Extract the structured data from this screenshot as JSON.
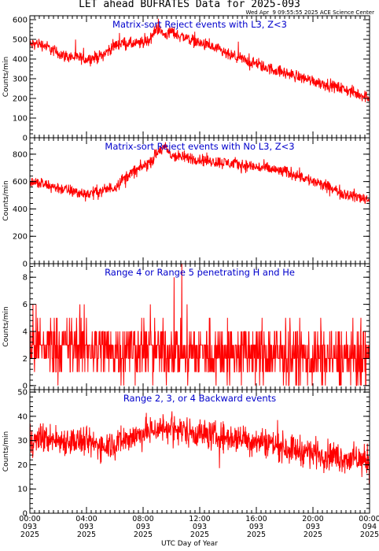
{
  "header": {
    "title": "LET ahead BUFRATES Data for 2025-093",
    "timestamp": "Wed Apr  9 09:55:55 2025 ACE Science Center"
  },
  "footer": {
    "xlabel": "UTC Day of Year"
  },
  "style": {
    "trace_color": "#ff0000",
    "title_color": "#0000cc",
    "axis_color": "#000000"
  },
  "chart_data": [
    {
      "type": "line",
      "title": "Matrix-sort Reject events with L3, Z<3",
      "ylabel": "Counts/min",
      "ylim": [
        0,
        620
      ],
      "yticks": [
        0,
        100,
        200,
        300,
        400,
        500,
        600
      ],
      "xlim": [
        0,
        24
      ],
      "grid": false,
      "series": [
        {
          "x": [
            0,
            0.5,
            1,
            1.5,
            2,
            2.5,
            3,
            3.5,
            4,
            4.5,
            5,
            5.5,
            6,
            6.5,
            7,
            7.5,
            8,
            8.5,
            9,
            9.5,
            10,
            10.5,
            11,
            11.5,
            12,
            12.5,
            13,
            13.5,
            14,
            14.5,
            15,
            15.5,
            16,
            16.5,
            17,
            17.5,
            18,
            18.5,
            19,
            19.5,
            20,
            20.5,
            21,
            21.5,
            22,
            22.5,
            23,
            23.5,
            24
          ],
          "values": [
            470,
            480,
            470,
            450,
            430,
            415,
            410,
            405,
            400,
            405,
            415,
            440,
            470,
            480,
            480,
            475,
            485,
            500,
            560,
            520,
            540,
            520,
            510,
            495,
            480,
            470,
            455,
            440,
            420,
            410,
            400,
            385,
            375,
            360,
            350,
            340,
            330,
            320,
            310,
            300,
            290,
            280,
            270,
            260,
            250,
            240,
            225,
            215,
            205
          ],
          "noise": 30
        }
      ]
    },
    {
      "type": "line",
      "title": "Matrix-sort Reject events with No L3, Z<3",
      "ylabel": "Counts/min",
      "ylim": [
        0,
        920
      ],
      "yticks": [
        0,
        200,
        400,
        600,
        800
      ],
      "xlim": [
        0,
        24
      ],
      "grid": false,
      "series": [
        {
          "x": [
            0,
            0.5,
            1,
            1.5,
            2,
            2.5,
            3,
            3.5,
            4,
            4.5,
            5,
            5.5,
            6,
            6.5,
            7,
            7.5,
            8,
            8.5,
            9,
            9.5,
            10,
            10.5,
            11,
            11.5,
            12,
            12.5,
            13,
            13.5,
            14,
            14.5,
            15,
            15.5,
            16,
            16.5,
            17,
            17.5,
            18,
            18.5,
            19,
            19.5,
            20,
            20.5,
            21,
            21.5,
            22,
            22.5,
            23,
            23.5,
            24
          ],
          "values": [
            600,
            590,
            575,
            565,
            555,
            540,
            530,
            515,
            510,
            520,
            530,
            545,
            560,
            610,
            650,
            680,
            710,
            740,
            810,
            850,
            790,
            780,
            775,
            770,
            760,
            755,
            745,
            740,
            735,
            730,
            720,
            715,
            705,
            700,
            690,
            680,
            670,
            660,
            650,
            620,
            600,
            580,
            560,
            540,
            520,
            505,
            490,
            480,
            470
          ],
          "noise": 45
        }
      ]
    },
    {
      "type": "line",
      "title": "Range 4 or Range 5 penetrating H and He",
      "ylabel": "Counts/min",
      "ylim": [
        -0.3,
        9
      ],
      "yticks": [
        0,
        2,
        4,
        6,
        8
      ],
      "xlim": [
        0,
        24
      ],
      "grid": false,
      "series": [
        {
          "x": [
            0,
            24
          ],
          "values": [
            3,
            2
          ],
          "noise": 2.2,
          "discrete": true
        }
      ]
    },
    {
      "type": "line",
      "title": "Range 2, 3, or 4 Backward events",
      "ylabel": "Counts/min",
      "ylim": [
        0,
        51
      ],
      "yticks": [
        0,
        10,
        20,
        30,
        40,
        50
      ],
      "xlim": [
        0,
        24
      ],
      "xticks": [
        {
          "time": "00:00",
          "doy": "093",
          "year": "2025"
        },
        {
          "time": "04:00",
          "doy": "093",
          "year": "2025"
        },
        {
          "time": "08:00",
          "doy": "093",
          "year": "2025"
        },
        {
          "time": "12:00",
          "doy": "093",
          "year": "2025"
        },
        {
          "time": "16:00",
          "doy": "093",
          "year": "2025"
        },
        {
          "time": "20:00",
          "doy": "093",
          "year": "2025"
        },
        {
          "time": "00:00",
          "doy": "094",
          "year": "2025"
        }
      ],
      "grid": false,
      "series": [
        {
          "x": [
            0,
            1,
            2,
            3,
            4,
            5,
            6,
            7,
            8,
            9,
            10,
            11,
            12,
            13,
            14,
            15,
            16,
            17,
            18,
            19,
            20,
            21,
            22,
            23,
            24
          ],
          "values": [
            30,
            31,
            30,
            30,
            29,
            28,
            29,
            31,
            33,
            35,
            35,
            34,
            33,
            32,
            31,
            31,
            30,
            29,
            27,
            26,
            25,
            24,
            23,
            22,
            22
          ],
          "noise": 6
        }
      ]
    }
  ]
}
